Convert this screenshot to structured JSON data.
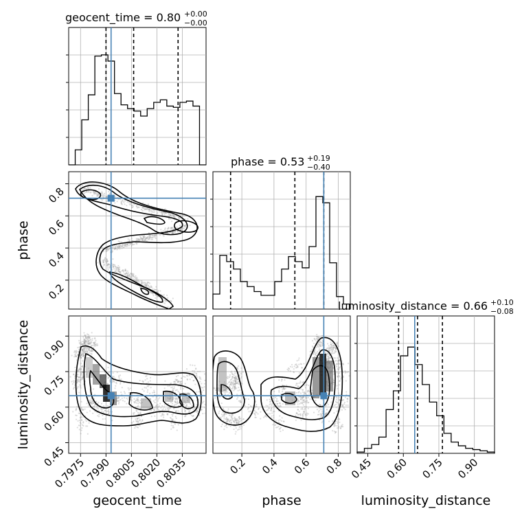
{
  "chart_data": {
    "type": "corner",
    "parameters": [
      "geocent_time",
      "phase",
      "luminosity_distance"
    ],
    "truths": {
      "geocent_time": 0.7993,
      "phase": 0.71,
      "luminosity_distance": 0.648
    },
    "titles": {
      "geocent_time": {
        "name": "geocent_time",
        "median": "0.80",
        "plus": "+0.00",
        "minus": "−0.00"
      },
      "phase": {
        "name": "phase",
        "median": "0.53",
        "plus": "+0.19",
        "minus": "−0.40"
      },
      "luminosity_distance": {
        "name": "luminosity_distance",
        "median": "0.66",
        "plus": "+0.10",
        "minus": "−0.08"
      }
    },
    "quantiles": {
      "geocent_time": [
        0.799,
        0.80063,
        0.80325
      ],
      "phase": [
        0.13,
        0.53,
        0.71
      ],
      "luminosity_distance": [
        0.58,
        0.66,
        0.765
      ]
    },
    "axes": {
      "geocent_time": {
        "label": "geocent_time",
        "range": [
          0.7968,
          0.8049
        ],
        "ticks": [
          "0.7975",
          "0.7990",
          "0.8005",
          "0.8020",
          "0.8035"
        ],
        "tick_values": [
          0.7975,
          0.799,
          0.8005,
          0.802,
          0.8035
        ]
      },
      "phase": {
        "label": "phase",
        "range": [
          0.02,
          0.875
        ],
        "ticks": [
          "0.2",
          "0.4",
          "0.6",
          "0.8"
        ],
        "tick_values": [
          0.2,
          0.4,
          0.6,
          0.8
        ]
      },
      "luminosity_distance": {
        "label": "luminosity_distance",
        "range": [
          0.405,
          0.985
        ],
        "ticks": [
          "0.45",
          "0.60",
          "0.75",
          "0.90"
        ],
        "tick_values": [
          0.45,
          0.6,
          0.75,
          0.9
        ]
      }
    },
    "histograms": {
      "geocent_time": {
        "range": [
          0.7968,
          0.8049
        ],
        "counts": [
          0.0,
          0.12,
          0.36,
          0.56,
          0.87,
          0.88,
          0.83,
          0.57,
          0.48,
          0.45,
          0.43,
          0.39,
          0.45,
          0.5,
          0.52,
          0.47,
          0.46,
          0.5,
          0.51,
          0.47,
          0.0
        ]
      },
      "phase": {
        "range": [
          0.02,
          0.875
        ],
        "counts": [
          0.12,
          0.43,
          0.38,
          0.32,
          0.22,
          0.18,
          0.14,
          0.11,
          0.11,
          0.22,
          0.32,
          0.42,
          0.38,
          0.33,
          0.5,
          0.9,
          0.85,
          0.37,
          0.1,
          0.04
        ]
      },
      "luminosity_distance": {
        "range": [
          0.405,
          0.985
        ],
        "counts": [
          0.01,
          0.04,
          0.07,
          0.13,
          0.35,
          0.5,
          0.78,
          0.85,
          0.71,
          0.55,
          0.41,
          0.3,
          0.16,
          0.09,
          0.06,
          0.04,
          0.03,
          0.02,
          0.01
        ]
      }
    },
    "grid": true,
    "colors": {
      "truth": "#4682b4",
      "line": "#000000",
      "grid": "#b0b0b0",
      "points": "#9a9a9a"
    }
  }
}
